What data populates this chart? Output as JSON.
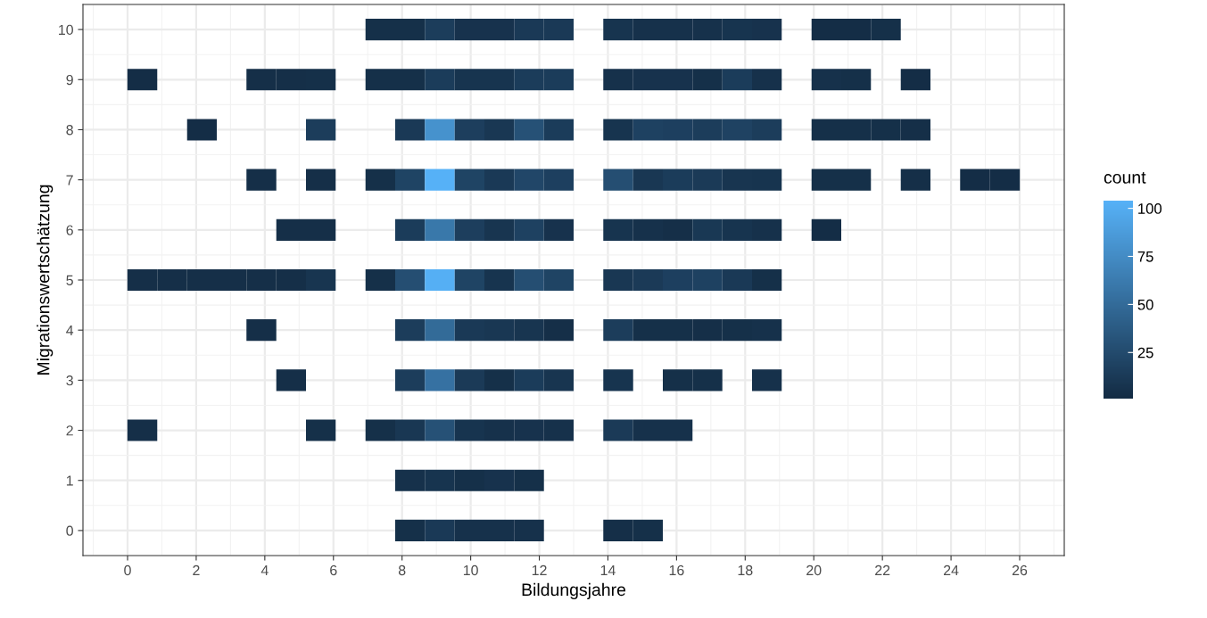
{
  "chart_data": {
    "type": "heatmap",
    "xlabel": "Bildungsjahre",
    "ylabel": "Migrationswertschätzung",
    "clabel": "count",
    "x": [
      0.43,
      1.3,
      2.17,
      3.03,
      3.9,
      4.77,
      5.63,
      6.5,
      7.37,
      8.23,
      9.1,
      9.97,
      10.83,
      11.7,
      12.57,
      13.43,
      14.3,
      15.17,
      16.03,
      16.9,
      17.77,
      18.63,
      19.5,
      20.37,
      21.23,
      22.1,
      22.97,
      23.83,
      24.7,
      25.57
    ],
    "y_categories": [
      "10",
      "9",
      "8",
      "7",
      "6",
      "5",
      "4",
      "3",
      "2",
      "1",
      "0"
    ],
    "cells": [
      [
        null,
        null,
        null,
        null,
        null,
        null,
        null,
        null,
        5,
        5,
        15,
        7,
        7,
        12,
        12,
        null,
        8,
        6,
        6,
        6,
        8,
        7,
        null,
        3,
        3,
        5,
        null,
        null,
        null,
        null
      ],
      [
        3,
        null,
        null,
        null,
        4,
        4,
        5,
        null,
        5,
        5,
        14,
        8,
        8,
        14,
        14,
        null,
        6,
        7,
        7,
        5,
        14,
        6,
        null,
        6,
        5,
        null,
        3,
        null,
        null,
        null
      ],
      [
        null,
        null,
        3,
        null,
        null,
        null,
        15,
        null,
        null,
        12,
        80,
        16,
        10,
        30,
        14,
        null,
        8,
        18,
        17,
        15,
        19,
        15,
        null,
        5,
        5,
        5,
        4,
        null,
        null,
        null
      ],
      [
        null,
        null,
        null,
        null,
        4,
        null,
        4,
        null,
        5,
        20,
        104,
        20,
        12,
        22,
        17,
        null,
        28,
        10,
        14,
        13,
        9,
        8,
        null,
        5,
        5,
        null,
        4,
        null,
        3,
        3
      ],
      [
        null,
        null,
        null,
        null,
        null,
        4,
        4,
        null,
        null,
        14,
        60,
        16,
        9,
        18,
        7,
        null,
        8,
        6,
        4,
        11,
        8,
        6,
        null,
        3,
        null,
        null,
        null,
        null,
        null,
        null
      ],
      [
        4,
        4,
        4,
        4,
        4,
        4,
        9,
        null,
        5,
        28,
        102,
        20,
        8,
        28,
        20,
        null,
        10,
        13,
        17,
        18,
        12,
        5,
        null,
        null,
        null,
        null,
        null,
        null,
        null,
        null
      ],
      [
        null,
        null,
        null,
        null,
        4,
        null,
        null,
        null,
        null,
        15,
        50,
        12,
        10,
        9,
        4,
        null,
        15,
        5,
        5,
        4,
        5,
        6,
        null,
        null,
        null,
        null,
        null,
        null,
        null,
        null
      ],
      [
        null,
        null,
        null,
        null,
        null,
        4,
        null,
        null,
        null,
        15,
        55,
        13,
        5,
        14,
        9,
        null,
        8,
        null,
        5,
        5,
        null,
        6,
        null,
        null,
        null,
        null,
        null,
        null,
        null,
        null
      ],
      [
        4,
        null,
        null,
        null,
        null,
        null,
        5,
        null,
        5,
        10,
        30,
        8,
        6,
        7,
        6,
        null,
        13,
        6,
        6,
        null,
        null,
        null,
        null,
        null,
        null,
        null,
        null,
        null,
        null,
        null
      ],
      [
        null,
        null,
        null,
        null,
        null,
        null,
        null,
        null,
        null,
        6,
        8,
        5,
        7,
        5,
        null,
        null,
        null,
        null,
        null,
        null,
        null,
        null,
        null,
        null,
        null,
        null,
        null,
        null,
        null,
        null
      ],
      [
        null,
        null,
        null,
        null,
        null,
        null,
        null,
        null,
        null,
        5,
        12,
        6,
        6,
        6,
        null,
        null,
        4,
        5,
        null,
        null,
        null,
        null,
        null,
        null,
        null,
        null,
        null,
        null,
        null,
        null
      ]
    ],
    "colors": [
      "#132b43",
      "#56b1f7"
    ],
    "clim": [
      1,
      104
    ],
    "cticks": [
      25,
      50,
      75,
      100
    ],
    "xlim": [
      -1.3,
      27.3
    ],
    "xticks": [
      0,
      2,
      4,
      6,
      8,
      10,
      12,
      14,
      16,
      18,
      20,
      22,
      24,
      26
    ],
    "grid": true
  }
}
